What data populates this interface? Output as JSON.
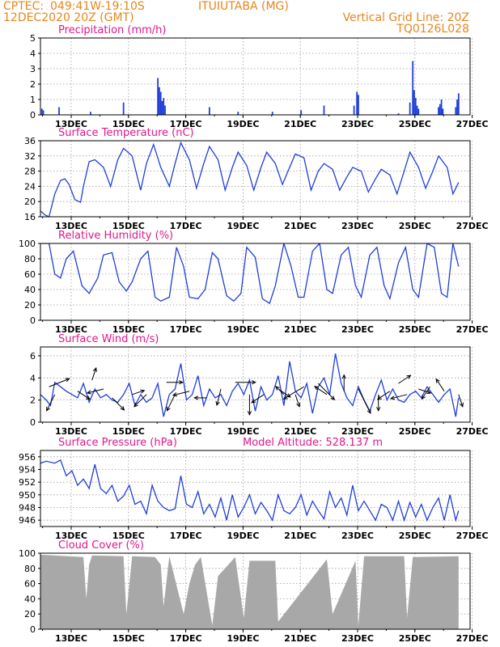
{
  "header": {
    "source": "CPTEC:",
    "coords": "049:41W-19:10S",
    "location": "ITUIUTABA (MG)",
    "run": "12DEC2020 20Z (GMT)",
    "grid_note": "Vertical Grid Line: 20Z",
    "model": "TQ0126L028"
  },
  "colors": {
    "header": "#e8861c",
    "panel_title": "#e0188c",
    "series": "#1f3fd8",
    "cloud": "#a8a8a8"
  },
  "x_dates": [
    "13DEC",
    "15DEC",
    "17DEC",
    "19DEC",
    "21DEC",
    "23DEC",
    "25DEC",
    "27DEC"
  ],
  "chart_data": [
    {
      "id": "precip",
      "type": "bar",
      "title": "Precipitation (mm/h)",
      "ylim": [
        0,
        5
      ],
      "yticks": [
        0,
        1,
        2,
        3,
        4,
        5
      ],
      "grid": true,
      "x_unit": "days since 12DEC2020 20Z",
      "points": [
        [
          0.05,
          0.4
        ],
        [
          0.1,
          0.3
        ],
        [
          0.65,
          0.5
        ],
        [
          1.75,
          0.2
        ],
        [
          2.9,
          0.8
        ],
        [
          4.1,
          2.4
        ],
        [
          4.15,
          1.8
        ],
        [
          4.2,
          1.5
        ],
        [
          4.25,
          0.9
        ],
        [
          4.3,
          1.1
        ],
        [
          4.35,
          0.6
        ],
        [
          5.9,
          0.5
        ],
        [
          6.9,
          0.2
        ],
        [
          8.1,
          0.2
        ],
        [
          9.1,
          0.3
        ],
        [
          9.9,
          0.6
        ],
        [
          10.95,
          0.6
        ],
        [
          11.05,
          1.5
        ],
        [
          11.1,
          1.3
        ],
        [
          12.5,
          0.1
        ],
        [
          12.9,
          0.8
        ],
        [
          13.0,
          3.5
        ],
        [
          13.05,
          1.6
        ],
        [
          13.1,
          1.1
        ],
        [
          13.15,
          0.6
        ],
        [
          13.2,
          0.4
        ],
        [
          13.9,
          0.5
        ],
        [
          13.95,
          0.7
        ],
        [
          14.0,
          1.0
        ],
        [
          14.05,
          0.4
        ],
        [
          14.5,
          0.5
        ],
        [
          14.55,
          1.0
        ],
        [
          14.6,
          1.4
        ]
      ]
    },
    {
      "id": "temp",
      "type": "line",
      "title": "Surface Temperature (nC)",
      "ylim": [
        16,
        36
      ],
      "yticks": [
        16,
        20,
        24,
        28,
        32,
        36
      ],
      "grid": true,
      "x": [
        0,
        0.15,
        0.3,
        0.5,
        0.7,
        0.85,
        1.0,
        1.2,
        1.4,
        1.5,
        1.7,
        1.9,
        2.2,
        2.45,
        2.7,
        2.9,
        3.2,
        3.5,
        3.7,
        3.95,
        4.2,
        4.5,
        4.7,
        4.9,
        5.2,
        5.45,
        5.7,
        5.9,
        6.2,
        6.45,
        6.7,
        6.9,
        7.2,
        7.45,
        7.7,
        7.9,
        8.2,
        8.45,
        8.7,
        8.9,
        9.2,
        9.45,
        9.7,
        9.9,
        10.2,
        10.45,
        10.7,
        10.9,
        11.2,
        11.45,
        11.7,
        11.9,
        12.2,
        12.45,
        12.7,
        12.9,
        13.2,
        13.45,
        13.7,
        13.9,
        14.2,
        14.4,
        14.6
      ],
      "y": [
        17.5,
        16.5,
        16,
        22,
        25.5,
        26,
        24.5,
        20.5,
        19.8,
        24,
        30.5,
        31,
        29,
        24,
        31,
        34,
        32,
        23,
        30,
        35,
        29,
        24,
        30,
        35.5,
        31,
        23.5,
        30,
        34.5,
        31,
        23,
        29,
        33,
        29.5,
        23,
        29,
        33,
        30,
        24.5,
        29,
        32.5,
        31.5,
        23,
        28,
        30,
        28.5,
        23,
        26.5,
        29,
        28,
        22.5,
        26,
        28.5,
        27,
        22,
        28,
        33,
        29,
        23.5,
        28,
        32,
        29,
        22,
        25
      ],
      "yscale": "linear"
    },
    {
      "id": "rh",
      "type": "line",
      "title": "Relative Humidity (%)",
      "ylim": [
        0,
        100
      ],
      "yticks": [
        0,
        20,
        40,
        60,
        80,
        100
      ],
      "grid": true,
      "x": [
        0,
        0.3,
        0.5,
        0.7,
        0.9,
        1.15,
        1.45,
        1.7,
        2.0,
        2.2,
        2.5,
        2.75,
        3.0,
        3.2,
        3.5,
        3.75,
        4.0,
        4.2,
        4.5,
        4.75,
        5.0,
        5.2,
        5.5,
        5.75,
        6.0,
        6.2,
        6.5,
        6.75,
        7.0,
        7.2,
        7.5,
        7.75,
        8.0,
        8.2,
        8.5,
        8.75,
        9.0,
        9.2,
        9.5,
        9.75,
        10.0,
        10.2,
        10.5,
        10.75,
        11.0,
        11.2,
        11.5,
        11.75,
        12.0,
        12.2,
        12.5,
        12.75,
        13.0,
        13.2,
        13.5,
        13.75,
        14.0,
        14.2,
        14.4,
        14.6
      ],
      "y": [
        100,
        100,
        60,
        55,
        80,
        90,
        45,
        35,
        55,
        85,
        88,
        50,
        38,
        50,
        80,
        90,
        30,
        25,
        30,
        95,
        70,
        30,
        28,
        40,
        88,
        80,
        32,
        25,
        35,
        95,
        82,
        28,
        22,
        45,
        100,
        70,
        30,
        30,
        90,
        100,
        40,
        35,
        85,
        95,
        45,
        30,
        85,
        95,
        45,
        28,
        75,
        95,
        40,
        30,
        100,
        95,
        35,
        30,
        100,
        70
      ],
      "yscale": "linear"
    },
    {
      "id": "wind",
      "type": "line",
      "title": "Surface Wind (m/s)",
      "ylim": [
        0,
        6.8
      ],
      "yticks": [
        0,
        2,
        4,
        6
      ],
      "grid": true,
      "x": [
        0,
        0.2,
        0.35,
        0.5,
        0.7,
        0.9,
        1.1,
        1.3,
        1.5,
        1.7,
        1.9,
        2.1,
        2.3,
        2.5,
        2.7,
        2.9,
        3.1,
        3.3,
        3.5,
        3.7,
        3.9,
        4.1,
        4.3,
        4.5,
        4.7,
        4.9,
        5.1,
        5.3,
        5.5,
        5.7,
        5.9,
        6.1,
        6.3,
        6.5,
        6.7,
        6.9,
        7.1,
        7.3,
        7.5,
        7.7,
        7.9,
        8.1,
        8.3,
        8.5,
        8.7,
        8.9,
        9.1,
        9.3,
        9.5,
        9.7,
        9.9,
        10.1,
        10.3,
        10.5,
        10.7,
        10.9,
        11.1,
        11.3,
        11.5,
        11.7,
        11.9,
        12.1,
        12.3,
        12.5,
        12.7,
        12.9,
        13.1,
        13.3,
        13.5,
        13.7,
        13.9,
        14.1,
        14.3,
        14.5,
        14.6
      ],
      "y": [
        2.5,
        2,
        1.5,
        3.6,
        3.2,
        2.8,
        2.5,
        2.2,
        3.5,
        1.8,
        3,
        2.2,
        2.5,
        2,
        1.8,
        2.5,
        3.5,
        1.5,
        2.5,
        1.8,
        2.2,
        3.5,
        0.5,
        2.5,
        3,
        5.3,
        2,
        2.5,
        4.2,
        1.5,
        3,
        2.2,
        2.5,
        1.5,
        2.8,
        3.5,
        2.5,
        3.8,
        1,
        3.2,
        2,
        2.5,
        4.2,
        1.5,
        5.5,
        2.8,
        2.2,
        3.5,
        0.8,
        3.2,
        4,
        2.5,
        6.2,
        3.5,
        2.2,
        1.5,
        3.2,
        2,
        1,
        2.5,
        3.8,
        2,
        3,
        2,
        1.8,
        2.5,
        2.8,
        2.2,
        3.2,
        2.5,
        1.8,
        2.5,
        3,
        0.5,
        2.2
      ]
    },
    {
      "id": "pres",
      "type": "line",
      "title": "Surface Pressure (hPa)",
      "annotation": "Model Altitude: 528.137 m",
      "ylim": [
        945,
        957
      ],
      "yticks": [
        946,
        948,
        950,
        952,
        954,
        956
      ],
      "grid": true,
      "x": [
        0,
        0.2,
        0.5,
        0.7,
        0.9,
        1.1,
        1.3,
        1.5,
        1.7,
        1.9,
        2.1,
        2.3,
        2.5,
        2.7,
        2.9,
        3.1,
        3.3,
        3.5,
        3.7,
        3.9,
        4.1,
        4.3,
        4.5,
        4.7,
        4.9,
        5.1,
        5.3,
        5.5,
        5.7,
        5.9,
        6.1,
        6.3,
        6.5,
        6.7,
        6.9,
        7.1,
        7.3,
        7.5,
        7.7,
        7.9,
        8.1,
        8.3,
        8.5,
        8.7,
        8.9,
        9.1,
        9.3,
        9.5,
        9.7,
        9.9,
        10.1,
        10.3,
        10.5,
        10.7,
        10.9,
        11.1,
        11.3,
        11.5,
        11.7,
        11.9,
        12.1,
        12.3,
        12.5,
        12.7,
        12.9,
        13.1,
        13.3,
        13.5,
        13.7,
        13.9,
        14.1,
        14.3,
        14.5,
        14.6
      ],
      "y": [
        955,
        955.3,
        955,
        955.5,
        953,
        953.8,
        951.5,
        952.5,
        951,
        954.8,
        951,
        950.2,
        951.5,
        949,
        949.8,
        951.5,
        948.5,
        949,
        947,
        951.5,
        949,
        948,
        947.5,
        947.8,
        953,
        948.5,
        948,
        950.5,
        947,
        948.5,
        946.5,
        949.5,
        946,
        950,
        946.5,
        948,
        950,
        947,
        948.8,
        947.5,
        946,
        950,
        947.5,
        947,
        948,
        950,
        946.8,
        949,
        947.5,
        946.2,
        950.5,
        948,
        949.5,
        946.8,
        951.5,
        947.5,
        949,
        947.5,
        946,
        948.5,
        948,
        946,
        949,
        946,
        948.8,
        946.5,
        948.5,
        946,
        948,
        949.5,
        946,
        950,
        946,
        947.5
      ],
      "yscale": "linear"
    },
    {
      "id": "cloud",
      "type": "area",
      "title": "Cloud Cover (%)",
      "ylim": [
        0,
        100
      ],
      "yticks": [
        0,
        20,
        40,
        60,
        80,
        100
      ],
      "grid": true,
      "x": [
        0,
        1.5,
        1.6,
        1.7,
        1.8,
        2.9,
        3.0,
        3.2,
        4.0,
        4.2,
        4.3,
        4.5,
        5.0,
        5.2,
        5.4,
        5.6,
        6.0,
        6.2,
        6.8,
        7.1,
        7.3,
        8.2,
        8.3,
        10.0,
        10.2,
        11.0,
        11.1,
        11.3,
        12.7,
        12.8,
        13.0,
        14.6
      ],
      "y": [
        98,
        95,
        40,
        85,
        97,
        96,
        20,
        96,
        95,
        85,
        30,
        96,
        20,
        60,
        85,
        95,
        5,
        70,
        95,
        15,
        90,
        90,
        10,
        92,
        20,
        90,
        5,
        96,
        96,
        15,
        95,
        96
      ],
      "yscale": "linear"
    }
  ],
  "wind_arrows": [
    [
      0.3,
      3.2,
      25,
      -10
    ],
    [
      0.5,
      2.5,
      -10,
      20
    ],
    [
      1.3,
      2.8,
      15,
      10
    ],
    [
      1.8,
      3.8,
      5,
      -15
    ],
    [
      2.2,
      3,
      -20,
      5
    ],
    [
      2.5,
      2.2,
      15,
      15
    ],
    [
      3.2,
      2.5,
      15,
      -5
    ],
    [
      3.7,
      2.5,
      -15,
      15
    ],
    [
      4.4,
      3.6,
      20,
      0
    ],
    [
      4.7,
      2.5,
      -10,
      20
    ],
    [
      5.2,
      2.8,
      -20,
      5
    ],
    [
      5.8,
      2.2,
      -15,
      0
    ],
    [
      6.3,
      3,
      -5,
      20
    ],
    [
      6.8,
      3.6,
      25,
      0
    ],
    [
      7.3,
      2.5,
      0,
      25
    ],
    [
      7.8,
      2.5,
      -15,
      10
    ],
    [
      8.3,
      3,
      15,
      10
    ],
    [
      8.5,
      2.5,
      -10,
      -10
    ],
    [
      8.9,
      2.5,
      5,
      15
    ],
    [
      9.2,
      3.2,
      -25,
      15
    ],
    [
      9.7,
      3.5,
      20,
      20
    ],
    [
      10.0,
      2.5,
      -15,
      -10
    ],
    [
      10.6,
      2.8,
      0,
      -20
    ],
    [
      11.1,
      3,
      15,
      30
    ],
    [
      11.8,
      2.5,
      0,
      20
    ],
    [
      12.2,
      2.8,
      -15,
      10
    ],
    [
      12.5,
      3.5,
      15,
      -10
    ],
    [
      12.8,
      2.5,
      -20,
      5
    ],
    [
      13.2,
      3,
      15,
      5
    ],
    [
      13.6,
      3.2,
      -10,
      15
    ],
    [
      14.1,
      2.8,
      -10,
      -15
    ],
    [
      14.6,
      2.5,
      5,
      15
    ]
  ]
}
